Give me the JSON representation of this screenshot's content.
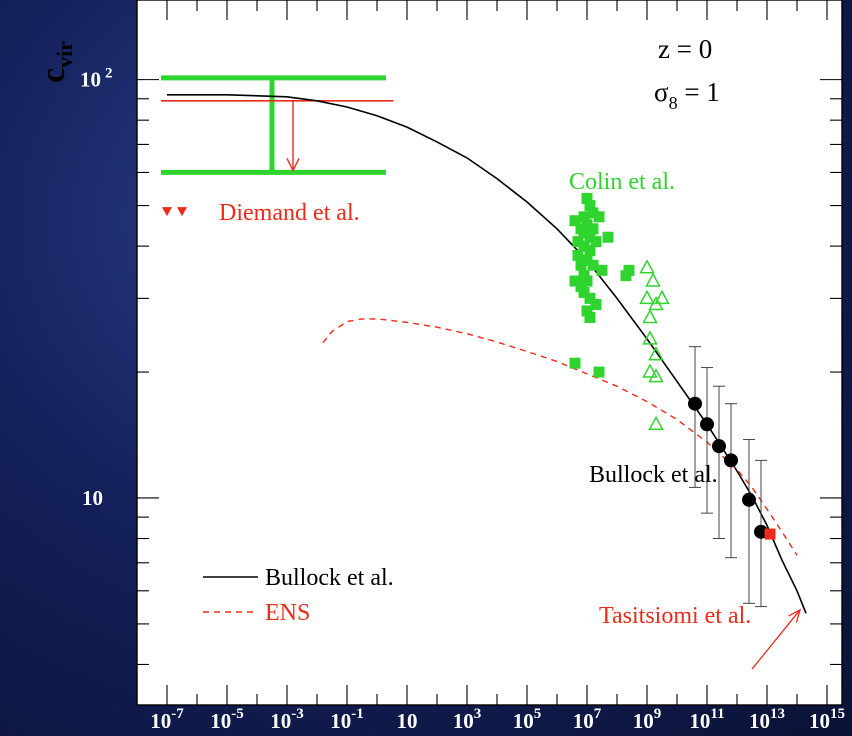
{
  "chart_data": {
    "type": "scatter",
    "ylabel": "c",
    "ylabel_sub": "vir",
    "xscale": "log",
    "yscale": "log",
    "xlim_exp": [
      -8,
      15.5
    ],
    "ylim": [
      3.2,
      155
    ],
    "x_tick_labels": [
      {
        "base": "10",
        "exp": "-7",
        "value": -7
      },
      {
        "base": "10",
        "exp": "-5",
        "value": -5
      },
      {
        "base": "10",
        "exp": "-3",
        "value": -3
      },
      {
        "base": "10",
        "exp": "-1",
        "value": -1
      },
      {
        "base": "10",
        "exp": "",
        "value": 1
      },
      {
        "base": "10",
        "exp": "3",
        "value": 3
      },
      {
        "base": "10",
        "exp": "5",
        "value": 5
      },
      {
        "base": "10",
        "exp": "7",
        "value": 7
      },
      {
        "base": "10",
        "exp": "9",
        "value": 9
      },
      {
        "base": "10",
        "exp": "11",
        "value": 11
      },
      {
        "base": "10",
        "exp": "13",
        "value": 13
      },
      {
        "base": "10",
        "exp": "15",
        "value": 15
      }
    ],
    "y_tick_labels": [
      {
        "base": "10",
        "exp": "2",
        "value": 100
      },
      {
        "base": "10",
        "exp": "",
        "value": 10
      }
    ],
    "params": [
      {
        "text": "z = 0"
      },
      {
        "symbol": "σ",
        "sub": "8",
        "text": " = 1"
      }
    ],
    "legend": [
      {
        "label": "Bullock et al.",
        "color": "#000000",
        "dash": "none"
      },
      {
        "label": "ENS",
        "color": "#ee2a1a",
        "dash": "6,5"
      }
    ],
    "annotations": {
      "colin": {
        "text": "Colin et al.",
        "color": "#2fd42f"
      },
      "diemand": {
        "text": "Diemand et al.",
        "color": "#ee2a1a"
      },
      "bullock": {
        "text": "Bullock et al.",
        "color": "#000000"
      },
      "tasitsiomi": {
        "text": "Tasitsiomi et al.",
        "color": "#ee2a1a"
      }
    },
    "series": [
      {
        "name": "Bullock et al.",
        "kind": "line",
        "color": "#000000",
        "points": [
          [
            -7.0,
            92
          ],
          [
            -5.0,
            92
          ],
          [
            -3.0,
            91
          ],
          [
            -2.0,
            89
          ],
          [
            -1.0,
            86
          ],
          [
            0.0,
            82
          ],
          [
            1.0,
            77
          ],
          [
            2.0,
            71
          ],
          [
            3.0,
            65
          ],
          [
            4.0,
            58
          ],
          [
            5.0,
            51
          ],
          [
            6.0,
            44
          ],
          [
            7.0,
            37
          ],
          [
            8.0,
            30
          ],
          [
            9.0,
            24
          ],
          [
            10.0,
            19
          ],
          [
            11.0,
            15
          ],
          [
            11.5,
            13.2
          ],
          [
            12.0,
            11.6
          ],
          [
            12.5,
            10.1
          ],
          [
            13.0,
            8.6
          ],
          [
            13.5,
            7.1
          ],
          [
            14.0,
            6.0
          ],
          [
            14.3,
            5.3
          ]
        ]
      },
      {
        "name": "ENS",
        "kind": "dashed-line",
        "color": "#ee2a1a",
        "points": [
          [
            -1.8,
            23.5
          ],
          [
            -1.5,
            25
          ],
          [
            -1.0,
            26.4
          ],
          [
            -0.5,
            26.8
          ],
          [
            0.0,
            26.8
          ],
          [
            1.0,
            26.3
          ],
          [
            2.0,
            25.6
          ],
          [
            3.0,
            24.7
          ],
          [
            4.0,
            23.6
          ],
          [
            5.0,
            22.4
          ],
          [
            6.0,
            21.2
          ],
          [
            7.0,
            19.8
          ],
          [
            8.0,
            18.5
          ],
          [
            9.0,
            17
          ],
          [
            10.0,
            15.4
          ],
          [
            11.0,
            13.6
          ],
          [
            12.0,
            11.7
          ],
          [
            12.5,
            10.6
          ],
          [
            13.0,
            9.4
          ],
          [
            13.5,
            8.3
          ],
          [
            14.0,
            7.3
          ]
        ]
      },
      {
        "name": "Colin et al. (filled squares)",
        "kind": "square",
        "color": "#2fd42f",
        "points": [
          [
            6.6,
            46
          ],
          [
            6.7,
            41
          ],
          [
            6.7,
            38
          ],
          [
            6.8,
            44
          ],
          [
            6.8,
            36
          ],
          [
            6.8,
            32
          ],
          [
            6.9,
            47
          ],
          [
            6.9,
            43
          ],
          [
            6.9,
            40
          ],
          [
            6.9,
            34
          ],
          [
            6.9,
            31
          ],
          [
            7.0,
            52
          ],
          [
            7.0,
            45
          ],
          [
            7.0,
            37
          ],
          [
            7.0,
            33
          ],
          [
            7.0,
            28
          ],
          [
            7.1,
            50
          ],
          [
            7.1,
            42
          ],
          [
            7.1,
            39
          ],
          [
            7.1,
            30
          ],
          [
            7.1,
            27
          ],
          [
            7.2,
            48
          ],
          [
            7.2,
            44
          ],
          [
            7.2,
            36
          ],
          [
            7.3,
            41
          ],
          [
            7.3,
            29
          ],
          [
            7.4,
            47
          ],
          [
            7.5,
            35
          ],
          [
            7.7,
            42
          ],
          [
            8.3,
            34
          ],
          [
            8.4,
            35
          ],
          [
            6.6,
            33
          ],
          [
            6.6,
            21
          ],
          [
            7.4,
            20
          ]
        ]
      },
      {
        "name": "Colin et al. (open triangles)",
        "kind": "open-triangle",
        "color": "#2fd42f",
        "points": [
          [
            9.0,
            35.5
          ],
          [
            9.0,
            30
          ],
          [
            9.1,
            27
          ],
          [
            9.1,
            24
          ],
          [
            9.1,
            20
          ],
          [
            9.2,
            33
          ],
          [
            9.3,
            29
          ],
          [
            9.3,
            22
          ],
          [
            9.3,
            19.5
          ],
          [
            9.5,
            30
          ],
          [
            9.3,
            15
          ]
        ]
      },
      {
        "name": "Bullock et al. (filled circles)",
        "kind": "circle-errorbar",
        "color": "#000000",
        "points": [
          [
            10.6,
            16.8,
            10.6,
            23
          ],
          [
            11.0,
            15.0,
            9.2,
            20.5
          ],
          [
            11.4,
            13.3,
            8.0,
            18.5
          ],
          [
            11.8,
            12.3,
            7.2,
            16.8
          ],
          [
            12.4,
            9.9,
            5.6,
            13.8
          ],
          [
            12.8,
            8.3,
            5.5,
            12.3
          ]
        ]
      },
      {
        "name": "Tasitsiomi et al.",
        "kind": "square",
        "color": "#ee2a1a",
        "points": [
          [
            13.1,
            8.2
          ]
        ]
      },
      {
        "name": "Diemand et al.",
        "kind": "down-triangle",
        "color": "#ee2a1a",
        "points": [
          [
            -7.0,
            48.5
          ],
          [
            -6.5,
            48.5
          ]
        ]
      }
    ],
    "diemand_range": {
      "color_outer": "#2fd42f",
      "color_inner": "#ee2a1a",
      "x_from": -7.2,
      "x_to": 0.3,
      "x_to_inner": 0.55,
      "y_top": 101,
      "y_bottom": 60,
      "y_inner": 89,
      "x_bar": -3.5,
      "x_arrow": -2.8
    },
    "tasitsiomi_arrow": {
      "from": [
        12.5,
        3.9
      ],
      "to": [
        14.1,
        5.4
      ]
    }
  }
}
